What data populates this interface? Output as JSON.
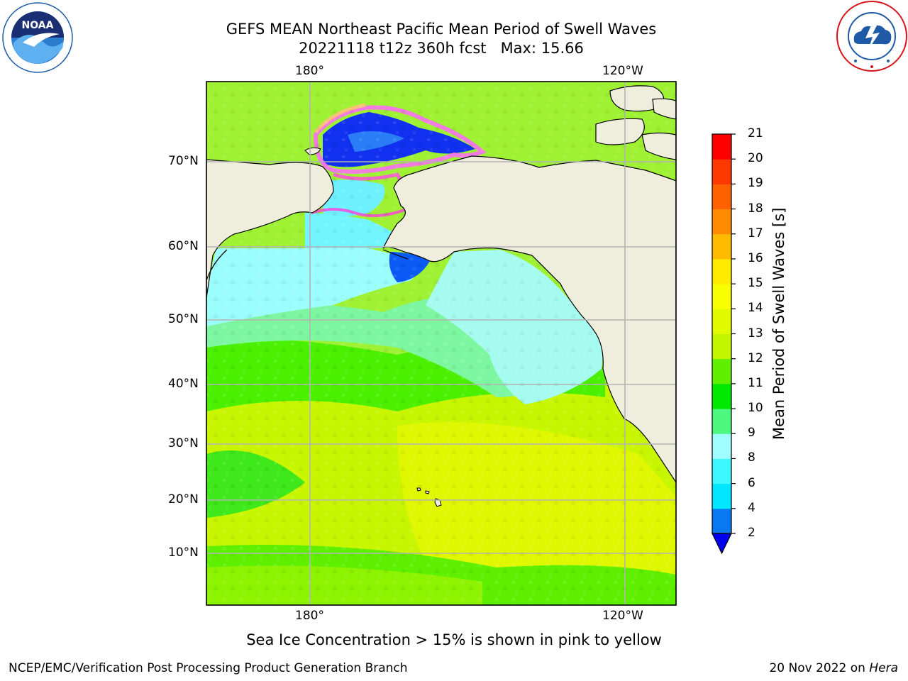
{
  "title": {
    "line1": "GEFS MEAN Northeast Pacific Mean Period of Swell Waves",
    "line2": "20221118 t12z 360h fcst   Max: 15.66"
  },
  "logos": {
    "left": {
      "name": "NOAA",
      "ring_text": "NATIONAL OCEANIC AND ATMOSPHERIC ADMINISTRATION",
      "bottom_text": "U.S. DEPARTMENT OF COMMERCE",
      "color": "#1f5aa6"
    },
    "right": {
      "ring_text": "NATIONAL WEATHER SERVICE",
      "color": "#d7141a"
    }
  },
  "map": {
    "lon_labels_top": [
      "180°",
      "120°W"
    ],
    "lon_labels_bottom": [
      "180°",
      "120°W"
    ],
    "lat_labels": [
      "70°N",
      "60°N",
      "50°N",
      "40°N",
      "30°N",
      "20°N",
      "10°N"
    ],
    "land_color": "#efeddc",
    "grid_color": "#b3b3b3"
  },
  "colorbar": {
    "label": "Mean Period of Swell Waves [s]",
    "ticks": [
      "2",
      "4",
      "6",
      "8",
      "9",
      "10",
      "11",
      "12",
      "13",
      "14",
      "15",
      "16",
      "17",
      "18",
      "19",
      "20",
      "21"
    ],
    "colors": [
      "#0a78f0",
      "#00e6ff",
      "#3ff7ff",
      "#a0fcff",
      "#4ef780",
      "#00e800",
      "#5ef000",
      "#c4f500",
      "#e0fa00",
      "#f7ff00",
      "#ffea00",
      "#ffbb00",
      "#ff8c00",
      "#ff6000",
      "#ff3800",
      "#ff0000"
    ],
    "extend_min_color": "#0000f0"
  },
  "caption": "Sea Ice Concentration > 15% is shown in pink to yellow",
  "footer": {
    "left": "NCEP/EMC/Verification Post Processing Product Generation Branch",
    "right_prefix": "20 Nov 2022 on ",
    "right_italic": "Hera"
  }
}
